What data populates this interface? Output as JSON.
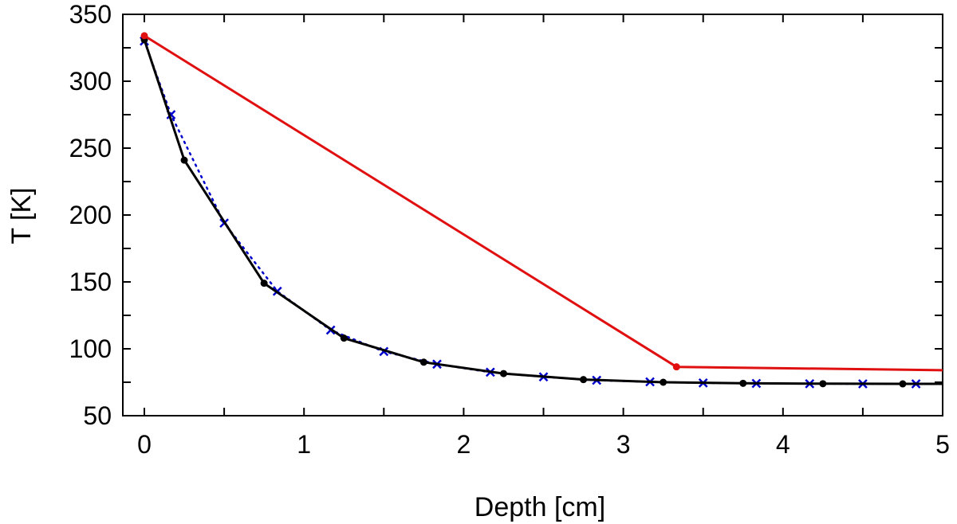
{
  "chart_data": {
    "type": "line",
    "title": "",
    "xlabel": "Depth [cm]",
    "ylabel": "T [K]",
    "xlim": [
      0,
      5
    ],
    "ylim": [
      50,
      350
    ],
    "grid": false,
    "legend": "none",
    "x_ticks": [
      "0",
      "1",
      "2",
      "3",
      "4",
      "5"
    ],
    "y_ticks": [
      "50",
      "100",
      "150",
      "200",
      "250",
      "300",
      "350"
    ],
    "x_tick_values": [
      0,
      1,
      2,
      3,
      4,
      5
    ],
    "y_tick_values": [
      50,
      100,
      150,
      200,
      250,
      300,
      350
    ],
    "series": [
      {
        "style": "solid-line-dot-markers",
        "color": "#000000",
        "x": [
          0,
          0.25,
          0.75,
          1.25,
          1.75,
          2.25,
          2.75,
          3.25,
          3.75,
          4.25,
          4.75,
          5.0
        ],
        "y": [
          331,
          241,
          149,
          108,
          90,
          81.5,
          77,
          75,
          74.2,
          73.9,
          73.8,
          73.8
        ]
      },
      {
        "style": "dotted-line-x-markers",
        "color": "#0000cc",
        "x": [
          0,
          0.167,
          0.5,
          0.833,
          1.167,
          1.5,
          1.833,
          2.167,
          2.5,
          2.833,
          3.167,
          3.5,
          3.833,
          4.167,
          4.5,
          4.833
        ],
        "y": [
          330,
          275,
          194,
          143,
          114,
          98,
          88.5,
          82.5,
          79,
          76.5,
          75.3,
          74.5,
          74.1,
          73.9,
          73.8,
          73.8
        ]
      },
      {
        "style": "solid-line-endpoint-dots",
        "color": "#e01010",
        "x": [
          0,
          3.333,
          5.0
        ],
        "y": [
          334,
          86.5,
          84
        ]
      }
    ]
  }
}
